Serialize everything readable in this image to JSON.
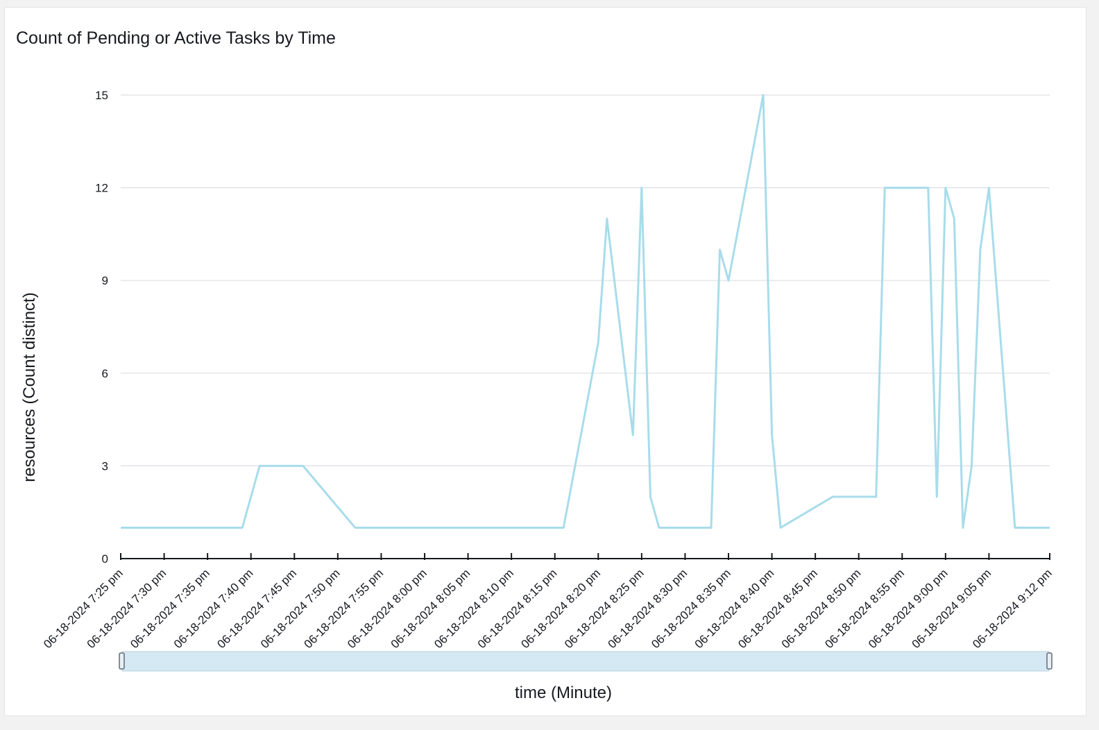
{
  "chart_data": {
    "type": "line",
    "title": "Count of Pending or Active Tasks by Time",
    "xlabel": "time (Minute)",
    "ylabel": "resources (Count distinct)",
    "ylim": [
      0,
      15
    ],
    "yticks": [
      "0",
      "3",
      "6",
      "9",
      "12",
      "15"
    ],
    "grid": true,
    "xlim": [
      "06-18-2024 7:25 pm",
      "06-18-2024 9:12 pm"
    ],
    "xtick_labels": [
      "06-18-2024 7:25 pm",
      "06-18-2024 7:30 pm",
      "06-18-2024 7:35 pm",
      "06-18-2024 7:40 pm",
      "06-18-2024 7:45 pm",
      "06-18-2024 7:50 pm",
      "06-18-2024 7:55 pm",
      "06-18-2024 8:00 pm",
      "06-18-2024 8:05 pm",
      "06-18-2024 8:10 pm",
      "06-18-2024 8:15 pm",
      "06-18-2024 8:20 pm",
      "06-18-2024 8:25 pm",
      "06-18-2024 8:30 pm",
      "06-18-2024 8:35 pm",
      "06-18-2024 8:40 pm",
      "06-18-2024 8:45 pm",
      "06-18-2024 8:50 pm",
      "06-18-2024 8:55 pm",
      "06-18-2024 9:00 pm",
      "06-18-2024 9:05 pm",
      "06-18-2024 9:12 pm"
    ],
    "series": [
      {
        "color": "#a8dcea",
        "x": [
          "06-18-2024 7:25 pm",
          "06-18-2024 7:39 pm",
          "06-18-2024 7:41 pm",
          "06-18-2024 7:46 pm",
          "06-18-2024 7:52 pm",
          "06-18-2024 8:16 pm",
          "06-18-2024 8:20 pm",
          "06-18-2024 8:21 pm",
          "06-18-2024 8:24 pm",
          "06-18-2024 8:25 pm",
          "06-18-2024 8:26 pm",
          "06-18-2024 8:27 pm",
          "06-18-2024 8:33 pm",
          "06-18-2024 8:34 pm",
          "06-18-2024 8:35 pm",
          "06-18-2024 8:39 pm",
          "06-18-2024 8:40 pm",
          "06-18-2024 8:41 pm",
          "06-18-2024 8:47 pm",
          "06-18-2024 8:52 pm",
          "06-18-2024 8:53 pm",
          "06-18-2024 8:58 pm",
          "06-18-2024 8:59 pm",
          "06-18-2024 9:00 pm",
          "06-18-2024 9:01 pm",
          "06-18-2024 9:02 pm",
          "06-18-2024 9:03 pm",
          "06-18-2024 9:04 pm",
          "06-18-2024 9:05 pm",
          "06-18-2024 9:08 pm",
          "06-18-2024 9:12 pm"
        ],
        "values": [
          1,
          1,
          3,
          3,
          1,
          1,
          7,
          11,
          4,
          12,
          2,
          1,
          1,
          10,
          9,
          15,
          4,
          1,
          2,
          2,
          12,
          12,
          2,
          12,
          11,
          1,
          3,
          10,
          12,
          1,
          1
        ]
      }
    ]
  }
}
